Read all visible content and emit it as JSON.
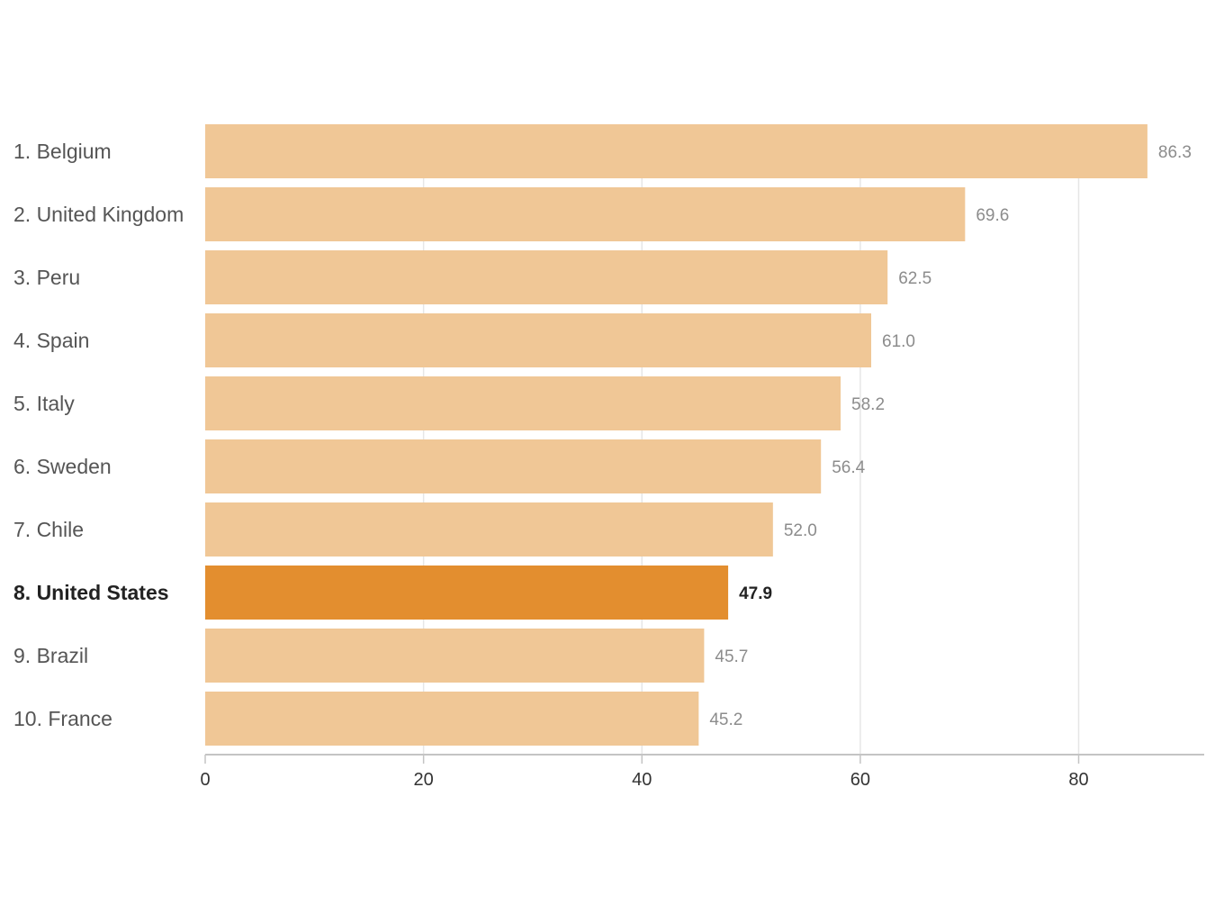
{
  "chart_data": {
    "type": "bar",
    "orientation": "horizontal",
    "categories": [
      "1. Belgium",
      "2. United Kingdom",
      "3. Peru",
      "4. Spain",
      "5. Italy",
      "6. Sweden",
      "7. Chile",
      "8. United States",
      "9. Brazil",
      "10. France"
    ],
    "values": [
      86.3,
      69.6,
      62.5,
      61.0,
      58.2,
      56.4,
      52.0,
      47.9,
      45.7,
      45.2
    ],
    "value_labels": [
      "86.3",
      "69.6",
      "62.5",
      "61.0",
      "58.2",
      "56.4",
      "52.0",
      "47.9",
      "45.7",
      "45.2"
    ],
    "highlight_index": 7,
    "x_ticks": [
      0,
      20,
      40,
      60,
      80
    ],
    "xlim": [
      0,
      91.5
    ],
    "title": "",
    "xlabel": "",
    "ylabel": "",
    "grid": true,
    "colors": {
      "bar": "#f0c796",
      "bar_highlight": "#e38e2f"
    }
  }
}
